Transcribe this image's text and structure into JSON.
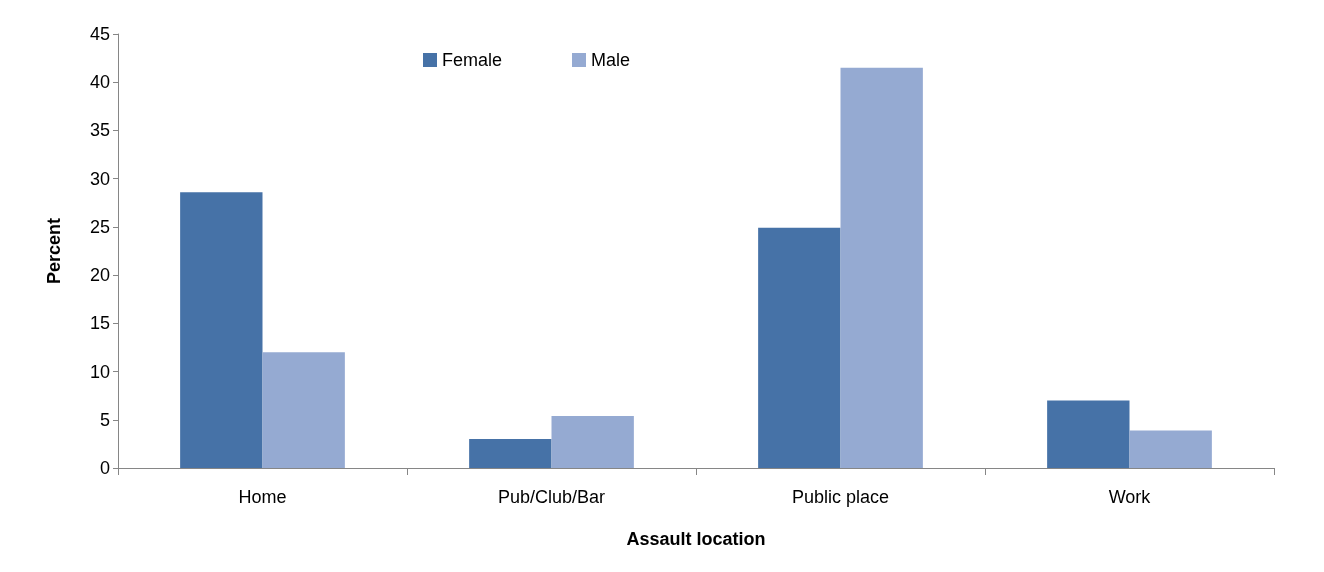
{
  "chart_data": {
    "type": "bar",
    "xlabel": "Assault location",
    "ylabel": "Percent",
    "categories": [
      "Home",
      "Pub/Club/Bar",
      "Public place",
      "Work"
    ],
    "series": [
      {
        "name": "Female",
        "color": "#4672a7",
        "values": [
          28.6,
          3,
          24.9,
          7
        ]
      },
      {
        "name": "Male",
        "color": "#95aad2",
        "values": [
          12,
          5.4,
          41.5,
          3.9
        ]
      }
    ],
    "ylim": [
      0,
      45
    ],
    "yticks": [
      0,
      5,
      10,
      15,
      20,
      25,
      30,
      35,
      40,
      45
    ],
    "grid": false,
    "legend": "top"
  }
}
